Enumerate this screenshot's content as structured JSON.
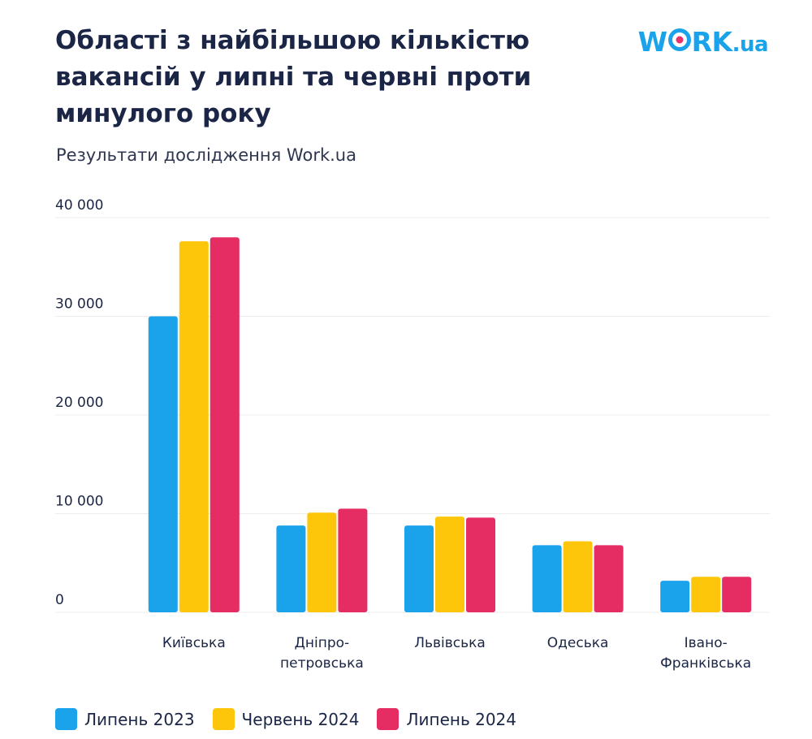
{
  "header": {
    "title": "Області з найбільшою кількістю\nвакансій у липні та червні проти\nминулого року",
    "subtitle": "Результати дослідження Work.ua",
    "logo": {
      "prefix": "W",
      "suffix_main": "RK",
      "suffix_tld": ".ua",
      "accent_color": "#e8326a"
    }
  },
  "colors": {
    "series_0": "#1aa3ea",
    "series_1": "#fdc60a",
    "series_2": "#e52c63",
    "grid": "#ececec",
    "text": "#1b2545"
  },
  "chart_data": {
    "type": "bar",
    "title": "Області з найбільшою кількістю вакансій у липні та червні проти минулого року",
    "subtitle": "Результати дослідження Work.ua",
    "xlabel": "",
    "ylabel": "",
    "ylim": [
      0,
      40000
    ],
    "yticks": [
      0,
      10000,
      20000,
      30000,
      40000
    ],
    "ytick_labels": [
      "0",
      "10 000",
      "20 000",
      "30 000",
      "40 000"
    ],
    "grid": true,
    "legend_position": "bottom-left",
    "categories": [
      [
        "Київська"
      ],
      [
        "Дніпро-",
        "петровська"
      ],
      [
        "Львівська"
      ],
      [
        "Одеська"
      ],
      [
        "Івано-",
        "Франківська"
      ]
    ],
    "series": [
      {
        "name": "Липень 2023",
        "color": "#1aa3ea",
        "values": [
          30000,
          8800,
          8800,
          6800,
          3200
        ]
      },
      {
        "name": "Червень 2024",
        "color": "#fdc60a",
        "values": [
          37600,
          10100,
          9700,
          7200,
          3600
        ]
      },
      {
        "name": "Липень 2024",
        "color": "#e52c63",
        "values": [
          38000,
          10500,
          9600,
          6800,
          3600
        ]
      }
    ]
  }
}
